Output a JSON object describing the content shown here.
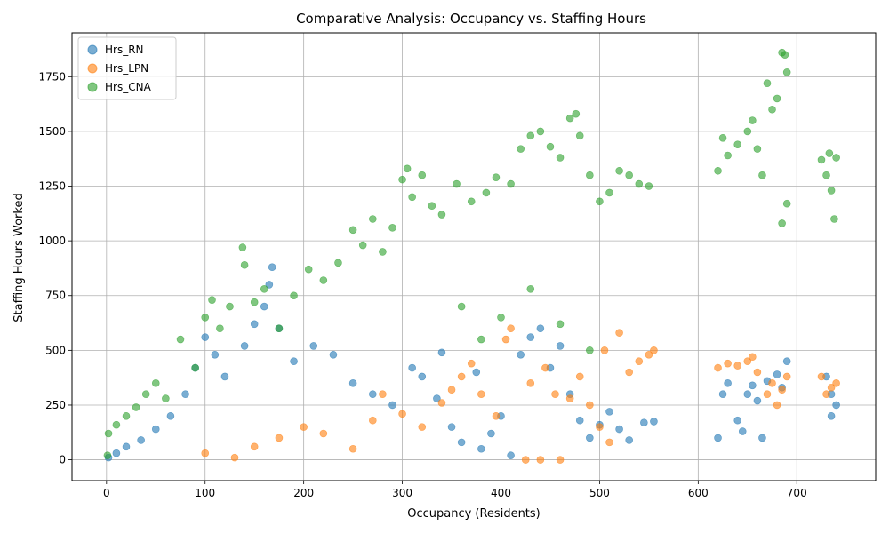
{
  "chart_data": {
    "type": "scatter",
    "title": "Comparative Analysis: Occupancy vs. Staffing Hours",
    "xlabel": "Occupancy (Residents)",
    "ylabel": "Staffing Hours Worked",
    "xlim": [
      -35,
      780
    ],
    "ylim": [
      -95,
      1950
    ],
    "x_ticks": [
      0,
      100,
      200,
      300,
      400,
      500,
      600,
      700
    ],
    "y_ticks": [
      0,
      250,
      500,
      750,
      1000,
      1250,
      1500,
      1750
    ],
    "grid": true,
    "legend_position": "top-left",
    "marker_alpha": 0.6,
    "series": [
      {
        "name": "Hrs_RN",
        "color": "#1f77b4",
        "points": [
          [
            2,
            10
          ],
          [
            10,
            30
          ],
          [
            20,
            60
          ],
          [
            35,
            90
          ],
          [
            50,
            140
          ],
          [
            65,
            200
          ],
          [
            80,
            300
          ],
          [
            90,
            420
          ],
          [
            100,
            560
          ],
          [
            110,
            480
          ],
          [
            120,
            380
          ],
          [
            140,
            520
          ],
          [
            150,
            620
          ],
          [
            160,
            700
          ],
          [
            165,
            800
          ],
          [
            168,
            880
          ],
          [
            175,
            600
          ],
          [
            190,
            450
          ],
          [
            210,
            520
          ],
          [
            230,
            480
          ],
          [
            250,
            350
          ],
          [
            270,
            300
          ],
          [
            290,
            250
          ],
          [
            310,
            420
          ],
          [
            320,
            380
          ],
          [
            335,
            280
          ],
          [
            340,
            490
          ],
          [
            350,
            150
          ],
          [
            360,
            80
          ],
          [
            375,
            400
          ],
          [
            380,
            50
          ],
          [
            390,
            120
          ],
          [
            400,
            200
          ],
          [
            410,
            20
          ],
          [
            420,
            480
          ],
          [
            430,
            560
          ],
          [
            440,
            600
          ],
          [
            450,
            420
          ],
          [
            460,
            520
          ],
          [
            470,
            300
          ],
          [
            480,
            180
          ],
          [
            490,
            100
          ],
          [
            500,
            160
          ],
          [
            510,
            220
          ],
          [
            520,
            140
          ],
          [
            530,
            90
          ],
          [
            545,
            170
          ],
          [
            555,
            175
          ],
          [
            620,
            100
          ],
          [
            625,
            300
          ],
          [
            630,
            350
          ],
          [
            640,
            180
          ],
          [
            645,
            130
          ],
          [
            650,
            300
          ],
          [
            655,
            340
          ],
          [
            660,
            270
          ],
          [
            665,
            100
          ],
          [
            670,
            360
          ],
          [
            680,
            390
          ],
          [
            685,
            330
          ],
          [
            690,
            450
          ],
          [
            730,
            380
          ],
          [
            735,
            300
          ],
          [
            740,
            250
          ],
          [
            735,
            200
          ]
        ]
      },
      {
        "name": "Hrs_LPN",
        "color": "#ff7f0e",
        "points": [
          [
            100,
            30
          ],
          [
            130,
            10
          ],
          [
            150,
            60
          ],
          [
            175,
            100
          ],
          [
            200,
            150
          ],
          [
            220,
            120
          ],
          [
            250,
            50
          ],
          [
            270,
            180
          ],
          [
            280,
            300
          ],
          [
            300,
            210
          ],
          [
            320,
            150
          ],
          [
            340,
            260
          ],
          [
            350,
            320
          ],
          [
            360,
            380
          ],
          [
            370,
            440
          ],
          [
            380,
            300
          ],
          [
            395,
            200
          ],
          [
            405,
            550
          ],
          [
            410,
            600
          ],
          [
            425,
            0
          ],
          [
            440,
            0
          ],
          [
            460,
            0
          ],
          [
            430,
            350
          ],
          [
            445,
            420
          ],
          [
            455,
            300
          ],
          [
            470,
            280
          ],
          [
            480,
            380
          ],
          [
            490,
            250
          ],
          [
            500,
            150
          ],
          [
            505,
            500
          ],
          [
            510,
            80
          ],
          [
            520,
            580
          ],
          [
            530,
            400
          ],
          [
            540,
            450
          ],
          [
            550,
            480
          ],
          [
            555,
            500
          ],
          [
            620,
            420
          ],
          [
            630,
            440
          ],
          [
            640,
            430
          ],
          [
            650,
            450
          ],
          [
            655,
            470
          ],
          [
            660,
            400
          ],
          [
            670,
            300
          ],
          [
            675,
            350
          ],
          [
            680,
            250
          ],
          [
            685,
            320
          ],
          [
            690,
            380
          ],
          [
            725,
            380
          ],
          [
            730,
            300
          ],
          [
            735,
            330
          ],
          [
            740,
            350
          ]
        ]
      },
      {
        "name": "Hrs_CNA",
        "color": "#2ca02c",
        "points": [
          [
            1,
            20
          ],
          [
            2,
            120
          ],
          [
            10,
            160
          ],
          [
            20,
            200
          ],
          [
            30,
            240
          ],
          [
            40,
            300
          ],
          [
            50,
            350
          ],
          [
            60,
            280
          ],
          [
            75,
            550
          ],
          [
            90,
            420
          ],
          [
            100,
            650
          ],
          [
            107,
            730
          ],
          [
            115,
            600
          ],
          [
            125,
            700
          ],
          [
            138,
            970
          ],
          [
            140,
            890
          ],
          [
            150,
            720
          ],
          [
            160,
            780
          ],
          [
            175,
            600
          ],
          [
            190,
            750
          ],
          [
            205,
            870
          ],
          [
            220,
            820
          ],
          [
            235,
            900
          ],
          [
            250,
            1050
          ],
          [
            260,
            980
          ],
          [
            270,
            1100
          ],
          [
            280,
            950
          ],
          [
            290,
            1060
          ],
          [
            300,
            1280
          ],
          [
            305,
            1330
          ],
          [
            310,
            1200
          ],
          [
            320,
            1300
          ],
          [
            330,
            1160
          ],
          [
            340,
            1120
          ],
          [
            355,
            1260
          ],
          [
            370,
            1180
          ],
          [
            385,
            1220
          ],
          [
            395,
            1290
          ],
          [
            410,
            1260
          ],
          [
            420,
            1420
          ],
          [
            430,
            1480
          ],
          [
            440,
            1500
          ],
          [
            450,
            1430
          ],
          [
            460,
            1380
          ],
          [
            470,
            1560
          ],
          [
            476,
            1580
          ],
          [
            480,
            1480
          ],
          [
            490,
            1300
          ],
          [
            500,
            1180
          ],
          [
            510,
            1220
          ],
          [
            520,
            1320
          ],
          [
            530,
            1300
          ],
          [
            540,
            1260
          ],
          [
            550,
            1250
          ],
          [
            360,
            700
          ],
          [
            380,
            550
          ],
          [
            400,
            650
          ],
          [
            430,
            780
          ],
          [
            460,
            620
          ],
          [
            490,
            500
          ],
          [
            620,
            1320
          ],
          [
            625,
            1470
          ],
          [
            630,
            1390
          ],
          [
            640,
            1440
          ],
          [
            650,
            1500
          ],
          [
            655,
            1550
          ],
          [
            660,
            1420
          ],
          [
            665,
            1300
          ],
          [
            670,
            1720
          ],
          [
            675,
            1600
          ],
          [
            680,
            1650
          ],
          [
            685,
            1860
          ],
          [
            688,
            1850
          ],
          [
            690,
            1770
          ],
          [
            685,
            1080
          ],
          [
            690,
            1170
          ],
          [
            725,
            1370
          ],
          [
            730,
            1300
          ],
          [
            733,
            1400
          ],
          [
            735,
            1230
          ],
          [
            738,
            1100
          ],
          [
            740,
            1380
          ]
        ]
      }
    ]
  }
}
